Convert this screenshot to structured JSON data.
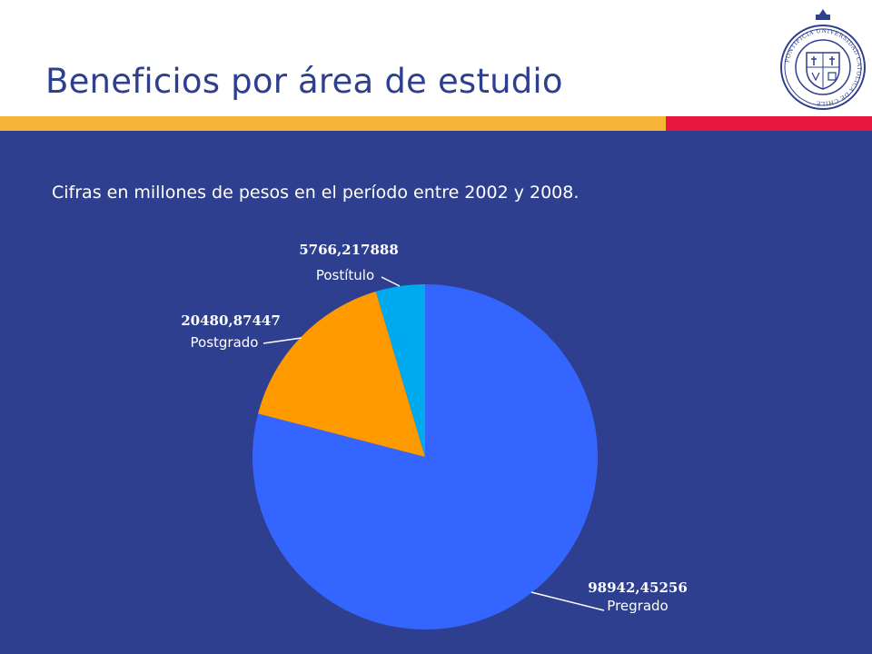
{
  "slide": {
    "title": "Beneficios por área de estudio",
    "subtitle": "Cifras en millones de pesos en el período entre 2002 y 2008."
  },
  "logo": {
    "name": "university-seal",
    "text": "PONTIFICIA UNIVERSIDAD CATOLICA DE CHILE"
  },
  "colors": {
    "title": "#2e3f8f",
    "background": "#2e3f8f",
    "accent_yellow": "#f7b538",
    "accent_red": "#e8173f",
    "text_on_dark": "#ffffff"
  },
  "chart_data": {
    "type": "pie",
    "title": "",
    "start_angle_deg": 0,
    "direction": "clockwise",
    "slices": [
      {
        "label": "Pregrado",
        "value": 98942.45256,
        "display_value": "98942,45256",
        "color": "#3466ff"
      },
      {
        "label": "Postgrado",
        "value": 20480.87447,
        "display_value": "20480,87447",
        "color": "#ff9900"
      },
      {
        "label": "Postítulo",
        "value": 5766.217888,
        "display_value": "5766,217888",
        "color": "#00aaee"
      }
    ],
    "legend": "none",
    "labels": "outside-with-leader-lines"
  }
}
